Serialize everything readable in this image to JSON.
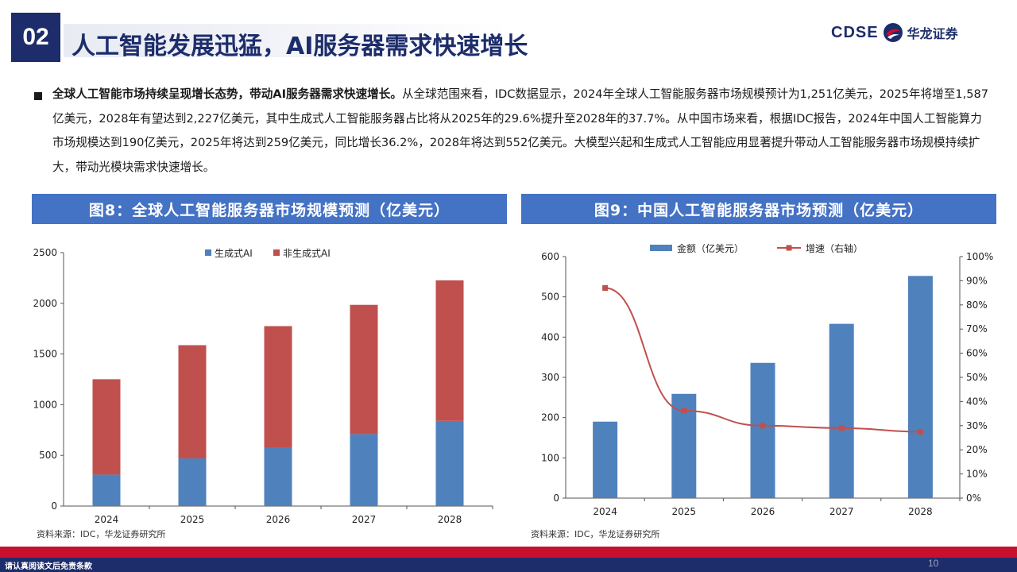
{
  "header": {
    "section_number": "02",
    "title": "人工智能发展迅猛，AI服务器需求快速增长",
    "logo_text": "CDSE",
    "logo_cn": "华龙证券"
  },
  "body": {
    "lead": "全球人工智能市场持续呈现增长态势，带动AI服务器需求快速增长。",
    "text": "从全球范围来看，IDC数据显示，2024年全球人工智能服务器市场规模预计为1,251亿美元，2025年将增至1,587亿美元，2028年有望达到2,227亿美元，其中生成式人工智能服务器占比将从2025年的29.6%提升至2028年的37.7%。从中国市场来看，根据IDC报告，2024年中国人工智能算力市场规模达到190亿美元，2025年将达到259亿美元，同比增长36.2%，2028年将达到552亿美元。大模型兴起和生成式人工智能应用显著提升带动人工智能服务器市场规模持续扩大，带动光模块需求快速增长。"
  },
  "figures": {
    "fig8_title": "图8：全球人工智能服务器市场规模预测（亿美元）",
    "fig9_title": "图9：中国人工智能服务器市场预测（亿美元）",
    "fig8_source": "资料来源：IDC，华龙证券研究所",
    "fig9_source": "资料来源：IDC，华龙证券研究所"
  },
  "chart_data": [
    {
      "type": "bar",
      "stacked": true,
      "categories": [
        "2024",
        "2025",
        "2026",
        "2027",
        "2028"
      ],
      "series": [
        {
          "name": "生成式AI",
          "color": "#4f81bd",
          "values": [
            310,
            470,
            580,
            710,
            840
          ]
        },
        {
          "name": "非生成式AI",
          "color": "#c0504d",
          "values": [
            941,
            1117,
            1195,
            1275,
            1387
          ]
        }
      ],
      "yticks": [
        "0",
        "500",
        "1000",
        "1500",
        "2000",
        "2500"
      ],
      "ylim": [
        0,
        2500
      ],
      "grid": false,
      "legend": "top-center"
    },
    {
      "type": "bar",
      "categories": [
        "2024",
        "2025",
        "2026",
        "2027",
        "2028"
      ],
      "series": [
        {
          "name": "金额（亿美元）",
          "type": "bar",
          "axis": "left",
          "color": "#4f81bd",
          "values": [
            190,
            259,
            336,
            433,
            552
          ]
        },
        {
          "name": "增速（右轴）",
          "type": "line",
          "axis": "right",
          "color": "#c0504d",
          "values": [
            87,
            36.2,
            30,
            29,
            27.5
          ]
        }
      ],
      "yticks_left": [
        "0",
        "100",
        "200",
        "300",
        "400",
        "500",
        "600"
      ],
      "ylim_left": [
        0,
        600
      ],
      "yticks_right": [
        "0%",
        "10%",
        "20%",
        "30%",
        "40%",
        "50%",
        "60%",
        "70%",
        "80%",
        "90%",
        "100%"
      ],
      "ylim_right": [
        0,
        100
      ],
      "grid": false,
      "legend": "top-center"
    }
  ],
  "footer": {
    "disclaimer": "请认真阅读文后免责条款",
    "page": "10"
  }
}
